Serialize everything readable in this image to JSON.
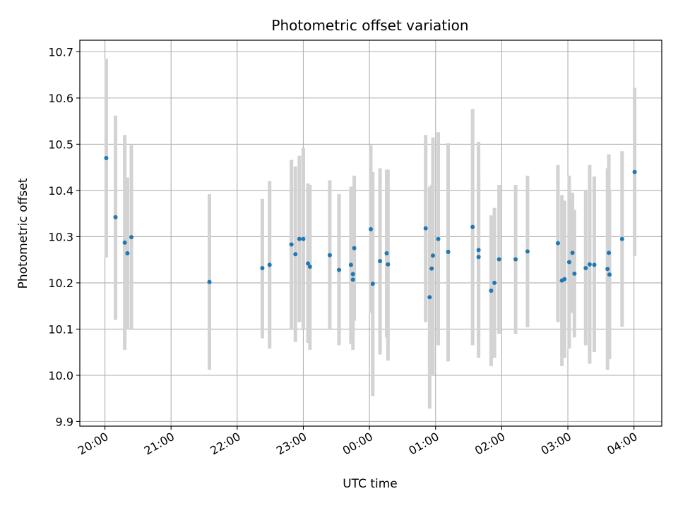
{
  "chart_data": {
    "type": "scatter",
    "title": "Photometric offset variation",
    "xlabel": "UTC time",
    "ylabel": "Photometric offset",
    "x_unit": "hours",
    "xlim": [
      -4.38,
      4.42
    ],
    "ylim": [
      9.89,
      10.725
    ],
    "x_ticks": [
      {
        "value": -4,
        "label": "20:00"
      },
      {
        "value": -3,
        "label": "21:00"
      },
      {
        "value": -2,
        "label": "22:00"
      },
      {
        "value": -1,
        "label": "23:00"
      },
      {
        "value": 0,
        "label": "00:00"
      },
      {
        "value": 1,
        "label": "01:00"
      },
      {
        "value": 2,
        "label": "02:00"
      },
      {
        "value": 3,
        "label": "03:00"
      },
      {
        "value": 4,
        "label": "04:00"
      }
    ],
    "y_ticks": [
      {
        "value": 9.9,
        "label": "9.9"
      },
      {
        "value": 10.0,
        "label": "10.0"
      },
      {
        "value": 10.1,
        "label": "10.1"
      },
      {
        "value": 10.2,
        "label": "10.2"
      },
      {
        "value": 10.3,
        "label": "10.3"
      },
      {
        "value": 10.4,
        "label": "10.4"
      },
      {
        "value": 10.5,
        "label": "10.5"
      },
      {
        "value": 10.6,
        "label": "10.6"
      },
      {
        "value": 10.7,
        "label": "10.7"
      }
    ],
    "grid": true,
    "marker_color": "#1f77b4",
    "errorbar_color": "#d3d3d3",
    "points": [
      {
        "x": -3.98,
        "y": 10.47,
        "lo": 10.255,
        "hi": 10.685
      },
      {
        "x": -3.84,
        "y": 10.342,
        "lo": 10.12,
        "hi": 10.562
      },
      {
        "x": -3.7,
        "y": 10.287,
        "lo": 10.055,
        "hi": 10.52
      },
      {
        "x": -3.66,
        "y": 10.264,
        "lo": 10.1,
        "hi": 10.428
      },
      {
        "x": -3.6,
        "y": 10.299,
        "lo": 10.1,
        "hi": 10.498
      },
      {
        "x": -2.42,
        "y": 10.202,
        "lo": 10.012,
        "hi": 10.392
      },
      {
        "x": -1.62,
        "y": 10.232,
        "lo": 10.08,
        "hi": 10.382
      },
      {
        "x": -1.51,
        "y": 10.239,
        "lo": 10.058,
        "hi": 10.42
      },
      {
        "x": -1.18,
        "y": 10.283,
        "lo": 10.1,
        "hi": 10.466
      },
      {
        "x": -1.12,
        "y": 10.262,
        "lo": 10.072,
        "hi": 10.452
      },
      {
        "x": -1.06,
        "y": 10.295,
        "lo": 10.115,
        "hi": 10.475
      },
      {
        "x": -1.0,
        "y": 10.295,
        "lo": 10.1,
        "hi": 10.492
      },
      {
        "x": -0.93,
        "y": 10.242,
        "lo": 10.07,
        "hi": 10.415
      },
      {
        "x": -0.9,
        "y": 10.235,
        "lo": 10.055,
        "hi": 10.412
      },
      {
        "x": -0.6,
        "y": 10.26,
        "lo": 10.098,
        "hi": 10.422
      },
      {
        "x": -0.46,
        "y": 10.228,
        "lo": 10.065,
        "hi": 10.392
      },
      {
        "x": -0.28,
        "y": 10.239,
        "lo": 10.068,
        "hi": 10.408
      },
      {
        "x": -0.25,
        "y": 10.219,
        "lo": 10.075,
        "hi": 10.365
      },
      {
        "x": -0.25,
        "y": 10.207,
        "lo": 10.055,
        "hi": 10.36
      },
      {
        "x": -0.23,
        "y": 10.275,
        "lo": 10.118,
        "hi": 10.432
      },
      {
        "x": 0.02,
        "y": 10.316,
        "lo": 10.135,
        "hi": 10.498
      },
      {
        "x": 0.05,
        "y": 10.198,
        "lo": 9.955,
        "hi": 10.44
      },
      {
        "x": 0.16,
        "y": 10.247,
        "lo": 10.045,
        "hi": 10.448
      },
      {
        "x": 0.26,
        "y": 10.264,
        "lo": 10.082,
        "hi": 10.445
      },
      {
        "x": 0.28,
        "y": 10.24,
        "lo": 10.032,
        "hi": 10.445
      },
      {
        "x": 0.85,
        "y": 10.318,
        "lo": 10.115,
        "hi": 10.52
      },
      {
        "x": 0.91,
        "y": 10.169,
        "lo": 9.928,
        "hi": 10.408
      },
      {
        "x": 0.94,
        "y": 10.231,
        "lo": 10.0,
        "hi": 10.412
      },
      {
        "x": 0.96,
        "y": 10.259,
        "lo": 10.0,
        "hi": 10.515
      },
      {
        "x": 1.04,
        "y": 10.295,
        "lo": 10.065,
        "hi": 10.526
      },
      {
        "x": 1.19,
        "y": 10.267,
        "lo": 10.03,
        "hi": 10.502
      },
      {
        "x": 1.56,
        "y": 10.321,
        "lo": 10.065,
        "hi": 10.576
      },
      {
        "x": 1.65,
        "y": 10.271,
        "lo": 10.038,
        "hi": 10.505
      },
      {
        "x": 1.65,
        "y": 10.256,
        "lo": 10.085,
        "hi": 10.43
      },
      {
        "x": 1.84,
        "y": 10.183,
        "lo": 10.02,
        "hi": 10.346
      },
      {
        "x": 1.89,
        "y": 10.2,
        "lo": 10.038,
        "hi": 10.362
      },
      {
        "x": 1.96,
        "y": 10.251,
        "lo": 10.09,
        "hi": 10.412
      },
      {
        "x": 2.21,
        "y": 10.251,
        "lo": 10.09,
        "hi": 10.412
      },
      {
        "x": 2.39,
        "y": 10.268,
        "lo": 10.104,
        "hi": 10.432
      },
      {
        "x": 2.85,
        "y": 10.286,
        "lo": 10.115,
        "hi": 10.455
      },
      {
        "x": 2.91,
        "y": 10.205,
        "lo": 10.02,
        "hi": 10.39
      },
      {
        "x": 2.95,
        "y": 10.208,
        "lo": 10.038,
        "hi": 10.378
      },
      {
        "x": 3.02,
        "y": 10.245,
        "lo": 10.058,
        "hi": 10.432
      },
      {
        "x": 3.07,
        "y": 10.265,
        "lo": 10.135,
        "hi": 10.395
      },
      {
        "x": 3.1,
        "y": 10.22,
        "lo": 10.082,
        "hi": 10.358
      },
      {
        "x": 3.27,
        "y": 10.232,
        "lo": 10.065,
        "hi": 10.4
      },
      {
        "x": 3.33,
        "y": 10.24,
        "lo": 10.025,
        "hi": 10.455
      },
      {
        "x": 3.4,
        "y": 10.239,
        "lo": 10.05,
        "hi": 10.43
      },
      {
        "x": 3.6,
        "y": 10.23,
        "lo": 10.012,
        "hi": 10.448
      },
      {
        "x": 3.62,
        "y": 10.265,
        "lo": 10.052,
        "hi": 10.478
      },
      {
        "x": 3.63,
        "y": 10.218,
        "lo": 10.035,
        "hi": 10.4
      },
      {
        "x": 3.82,
        "y": 10.295,
        "lo": 10.105,
        "hi": 10.485
      },
      {
        "x": 4.01,
        "y": 10.44,
        "lo": 10.258,
        "hi": 10.622
      }
    ]
  }
}
